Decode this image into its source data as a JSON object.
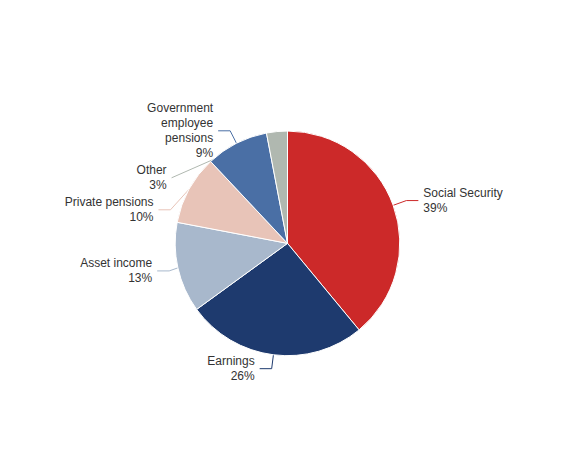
{
  "chart_data": {
    "type": "pie",
    "categories": [
      "Social Security",
      "Earnings",
      "Asset income",
      "Private pensions",
      "Government\nemployee\npensions",
      "Other"
    ],
    "values": [
      39,
      26,
      13,
      10,
      9,
      3
    ],
    "value_labels": [
      "39%",
      "26%",
      "13%",
      "10%",
      "9%",
      "3%"
    ],
    "data_labels": true,
    "colors": [
      "#cc2929",
      "#1e3a6e",
      "#a8b8cc",
      "#e8c4b8",
      "#4a6fa5",
      "#b0b8b0"
    ]
  }
}
